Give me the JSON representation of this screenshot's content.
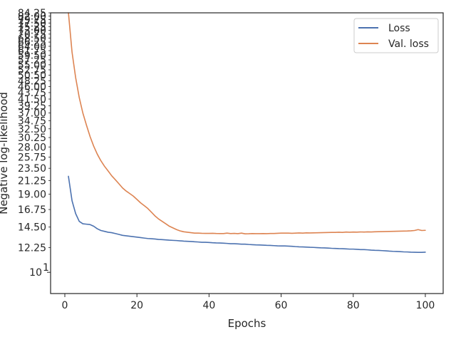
{
  "chart_data": {
    "type": "line",
    "xlabel": "Epochs",
    "ylabel": "Negative log-likelihood",
    "xlim": [
      -3.95,
      104.95
    ],
    "ylim": [
      8.4,
      84.25
    ],
    "y_scale": "log",
    "grid": false,
    "legend_position": "top-right",
    "x_ticks": [
      0,
      20,
      40,
      60,
      80,
      100
    ],
    "x_tick_labels": [
      "0",
      "20",
      "40",
      "60",
      "80",
      "100"
    ],
    "y_ticks": [
      12.25,
      14.5,
      16.75,
      19.0,
      21.25,
      23.5,
      25.75,
      28.0,
      30.25,
      32.5,
      34.75,
      37.0,
      39.25,
      41.5,
      43.75,
      46.0,
      48.25,
      50.5,
      52.75,
      55.0,
      57.25,
      59.5,
      61.75,
      64.0,
      66.25,
      68.5,
      70.75,
      73.0,
      75.25,
      77.5,
      79.75,
      82.0,
      84.25
    ],
    "y_tick_labels": [
      "12.25",
      "14.50",
      "16.75",
      "19.00",
      "21.25",
      "23.50",
      "25.75",
      "28.00",
      "30.25",
      "32.50",
      "34.75",
      "37.00",
      "39.25",
      "41.50",
      "43.75",
      "46.00",
      "48.25",
      "50.50",
      "52.75",
      "55.00",
      "57.25",
      "59.50",
      "61.75",
      "64.00",
      "66.25",
      "68.50",
      "70.75",
      "73.00",
      "75.25",
      "77.50",
      "79.75",
      "82.00",
      "84.25"
    ],
    "y_major_tick": {
      "value": 10,
      "label_base": "10",
      "label_exp": "1"
    },
    "x": [
      1,
      2,
      3,
      4,
      5,
      6,
      7,
      8,
      9,
      10,
      11,
      12,
      13,
      14,
      15,
      16,
      17,
      18,
      19,
      20,
      21,
      22,
      23,
      24,
      25,
      26,
      27,
      28,
      29,
      30,
      31,
      32,
      33,
      34,
      35,
      36,
      37,
      38,
      39,
      40,
      41,
      42,
      43,
      44,
      45,
      46,
      47,
      48,
      49,
      50,
      51,
      52,
      53,
      54,
      55,
      56,
      57,
      58,
      59,
      60,
      61,
      62,
      63,
      64,
      65,
      66,
      67,
      68,
      69,
      70,
      71,
      72,
      73,
      74,
      75,
      76,
      77,
      78,
      79,
      80,
      81,
      82,
      83,
      84,
      85,
      86,
      87,
      88,
      89,
      90,
      91,
      92,
      93,
      94,
      95,
      96,
      97,
      98,
      99,
      100
    ],
    "series": [
      {
        "name": "Loss",
        "color": "#4c72b0",
        "values": [
          22.0,
          18.0,
          16.2,
          15.2,
          14.9,
          14.85,
          14.8,
          14.6,
          14.3,
          14.1,
          14.0,
          13.9,
          13.85,
          13.75,
          13.65,
          13.55,
          13.5,
          13.45,
          13.4,
          13.35,
          13.3,
          13.25,
          13.2,
          13.18,
          13.15,
          13.1,
          13.08,
          13.05,
          13.02,
          13.0,
          12.98,
          12.95,
          12.92,
          12.9,
          12.88,
          12.85,
          12.83,
          12.8,
          12.8,
          12.78,
          12.75,
          12.73,
          12.72,
          12.7,
          12.68,
          12.65,
          12.65,
          12.63,
          12.6,
          12.6,
          12.57,
          12.55,
          12.53,
          12.52,
          12.5,
          12.48,
          12.47,
          12.45,
          12.43,
          12.42,
          12.42,
          12.4,
          12.38,
          12.35,
          12.33,
          12.32,
          12.3,
          12.28,
          12.27,
          12.25,
          12.23,
          12.22,
          12.2,
          12.18,
          12.17,
          12.15,
          12.14,
          12.12,
          12.1,
          12.1,
          12.08,
          12.05,
          12.05,
          12.03,
          12.0,
          11.98,
          11.97,
          11.95,
          11.93,
          11.9,
          11.88,
          11.87,
          11.85,
          11.83,
          11.82,
          11.8,
          11.79,
          11.78,
          11.78,
          11.8
        ]
      },
      {
        "name": "Val. loss",
        "color": "#dd8452",
        "values": [
          84.25,
          61.0,
          49.5,
          42.0,
          37.0,
          33.5,
          30.5,
          28.2,
          26.4,
          25.0,
          23.9,
          23.0,
          22.1,
          21.4,
          20.7,
          20.0,
          19.5,
          19.1,
          18.7,
          18.2,
          17.7,
          17.3,
          16.9,
          16.4,
          15.9,
          15.5,
          15.2,
          14.9,
          14.6,
          14.4,
          14.2,
          14.05,
          13.95,
          13.9,
          13.85,
          13.8,
          13.8,
          13.78,
          13.77,
          13.77,
          13.78,
          13.76,
          13.75,
          13.75,
          13.8,
          13.75,
          13.77,
          13.74,
          13.8,
          13.72,
          13.73,
          13.75,
          13.74,
          13.74,
          13.75,
          13.74,
          13.76,
          13.76,
          13.78,
          13.8,
          13.8,
          13.8,
          13.78,
          13.8,
          13.82,
          13.8,
          13.83,
          13.82,
          13.83,
          13.84,
          13.85,
          13.86,
          13.87,
          13.88,
          13.88,
          13.9,
          13.88,
          13.92,
          13.9,
          13.92,
          13.91,
          13.93,
          13.92,
          13.94,
          13.93,
          13.95,
          13.96,
          13.97,
          13.98,
          13.99,
          14.0,
          14.01,
          14.02,
          14.03,
          14.04,
          14.06,
          14.1,
          14.2,
          14.1,
          14.12
        ]
      }
    ]
  }
}
